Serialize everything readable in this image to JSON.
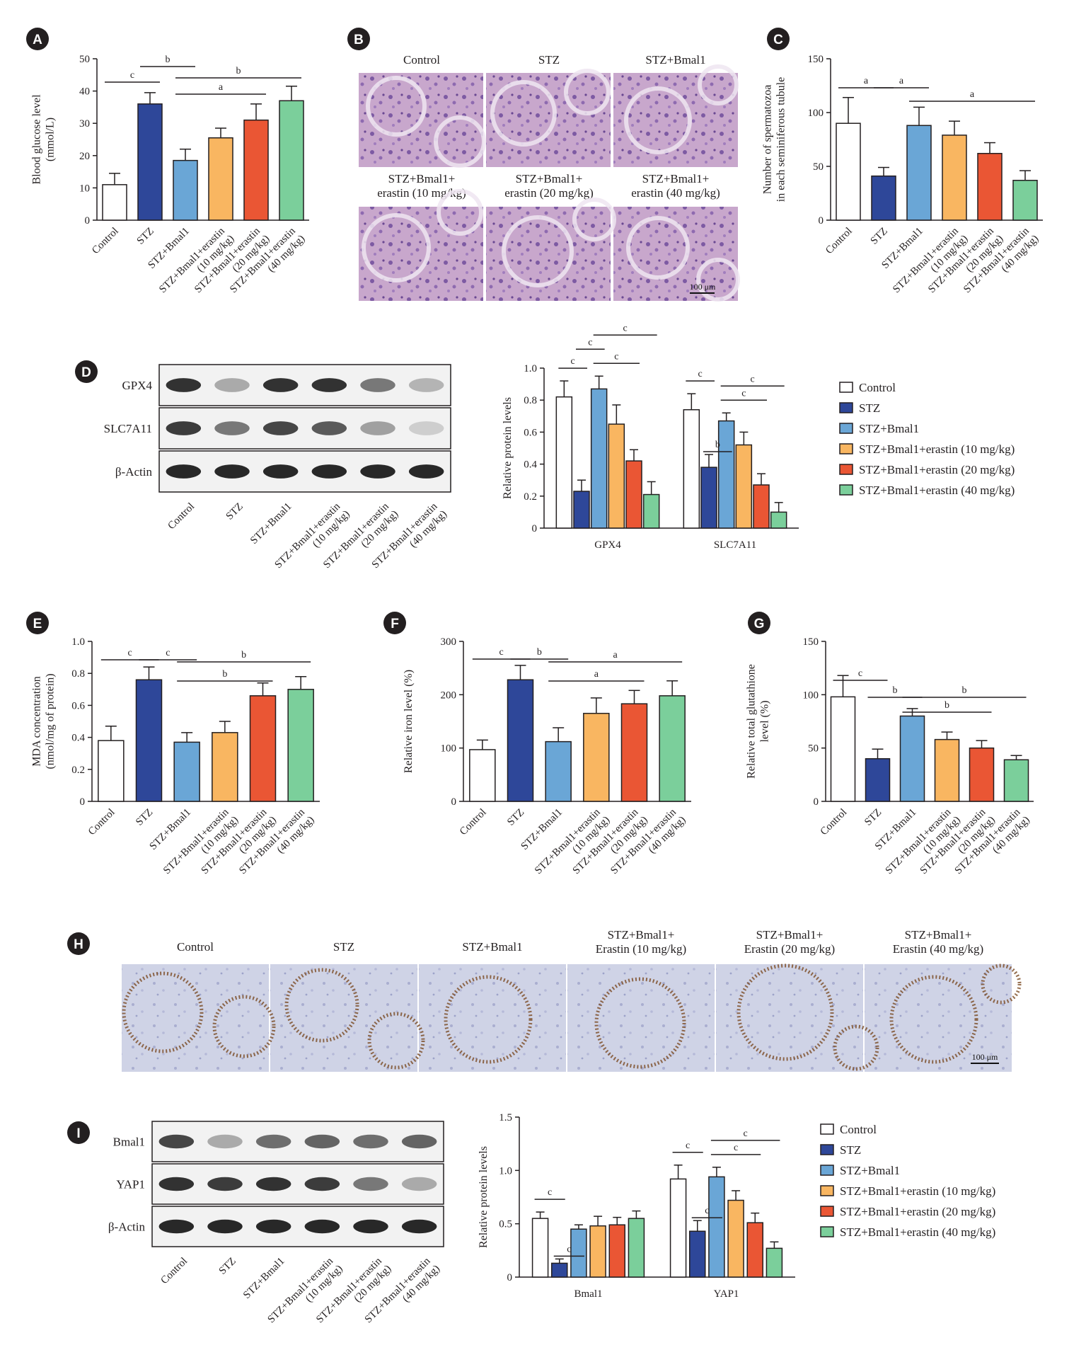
{
  "colors": {
    "Control": "#ffffff",
    "STZ": "#2e4799",
    "STZ+Bmal1": "#6aa6d6",
    "STZ+Bmal1+erastin (10 mg/kg)": "#f9b661",
    "STZ+Bmal1+erastin (20 mg/kg)": "#ea5634",
    "STZ+Bmal1+erastin (40 mg/kg)": "#7bcf9b"
  },
  "panel_labels": [
    "A",
    "B",
    "C",
    "D",
    "E",
    "F",
    "G",
    "H",
    "I"
  ],
  "panel_b": {
    "top_captions": [
      "Control",
      "STZ",
      "STZ+Bmal1"
    ],
    "bottom_captions": [
      "STZ+Bmal1+\nerastin (10 mg/kg)",
      "STZ+Bmal1+\nerastin (20 mg/kg)",
      "STZ+Bmal1+\nerastin (40 mg/kg)"
    ],
    "scale_bar": "100 μm"
  },
  "panel_h": {
    "captions": [
      "Control",
      "STZ",
      "STZ+Bmal1",
      "STZ+Bmal1+\nErastin (10 mg/kg)",
      "STZ+Bmal1+\nErastin (20 mg/kg)",
      "STZ+Bmal1+\nErastin (40 mg/kg)"
    ],
    "scale_bar": "100 μm"
  },
  "panel_d_blot": {
    "rows": [
      "GPX4",
      "SLC7A11",
      "β-Actin"
    ],
    "lanes": [
      "Control",
      "STZ",
      "STZ+Bmal1",
      "STZ+Bmal1+erastin\n(10 mg/kg)",
      "STZ+Bmal1+erastin\n(20 mg/kg)",
      "STZ+Bmal1+erastin\n(40 mg/kg)"
    ],
    "intensity": [
      [
        0.9,
        0.3,
        0.9,
        0.9,
        0.55,
        0.25
      ],
      [
        0.85,
        0.55,
        0.8,
        0.7,
        0.35,
        0.12
      ],
      [
        0.95,
        0.95,
        0.95,
        0.95,
        0.95,
        0.95
      ]
    ]
  },
  "panel_i_blot": {
    "rows": [
      "Bmal1",
      "YAP1",
      "β-Actin"
    ],
    "lanes": [
      "Control",
      "STZ",
      "STZ+Bmal1",
      "STZ+Bmal1+erastin\n(10 mg/kg)",
      "STZ+Bmal1+erastin\n(20 mg/kg)",
      "STZ+Bmal1+erastin\n(40 mg/kg)"
    ],
    "intensity": [
      [
        0.8,
        0.3,
        0.6,
        0.65,
        0.6,
        0.65
      ],
      [
        0.9,
        0.85,
        0.9,
        0.85,
        0.55,
        0.3
      ],
      [
        0.95,
        0.95,
        0.95,
        0.95,
        0.95,
        0.95
      ]
    ]
  },
  "chart_data": [
    {
      "id": "A",
      "type": "bar",
      "categories": [
        "Control",
        "STZ",
        "STZ+Bmal1",
        "STZ+Bmal1+erastin\n(10 mg/kg)",
        "STZ+Bmal1+erastin\n(20 mg/kg)",
        "STZ+Bmal1+erastin\n(40 mg/kg)"
      ],
      "values": [
        11,
        36,
        18.5,
        25.5,
        31,
        37
      ],
      "errors": [
        3.5,
        3.5,
        3.5,
        3,
        5,
        4.5
      ],
      "ylabel": "Blood glucose level\n(mmol/L)",
      "ylim": [
        0,
        50
      ],
      "yticks": [
        0,
        10,
        20,
        30,
        40,
        50
      ],
      "significance": [
        {
          "from": 0,
          "to": 1,
          "label": "c"
        },
        {
          "from": 1,
          "to": 2,
          "label": "b"
        },
        {
          "from": 2,
          "to": 4,
          "label": "a"
        },
        {
          "from": 2,
          "to": 5,
          "label": "b"
        }
      ]
    },
    {
      "id": "C",
      "type": "bar",
      "categories": [
        "Control",
        "STZ",
        "STZ+Bmal1",
        "STZ+Bmal1+erastin\n(10 mg/kg)",
        "STZ+Bmal1+erastin\n(20 mg/kg)",
        "STZ+Bmal1+erastin\n(40 mg/kg)"
      ],
      "values": [
        90,
        41,
        88,
        79,
        62,
        37
      ],
      "errors": [
        24,
        8,
        17,
        13,
        10,
        9
      ],
      "ylabel": "Number of spermatozoa\nin each seminiferous tubule",
      "ylim": [
        0,
        150
      ],
      "yticks": [
        0,
        50,
        100,
        150
      ],
      "significance": [
        {
          "from": 0,
          "to": 1,
          "label": "a"
        },
        {
          "from": 1,
          "to": 2,
          "label": "a"
        },
        {
          "from": 2,
          "to": 5,
          "label": "a"
        }
      ]
    },
    {
      "id": "D",
      "type": "bar",
      "groups": [
        "GPX4",
        "SLC7A11"
      ],
      "series": [
        {
          "name": "Control",
          "values": [
            0.82,
            0.74
          ],
          "errors": [
            0.1,
            0.1
          ]
        },
        {
          "name": "STZ",
          "values": [
            0.23,
            0.38
          ],
          "errors": [
            0.07,
            0.08
          ]
        },
        {
          "name": "STZ+Bmal1",
          "values": [
            0.87,
            0.67
          ],
          "errors": [
            0.08,
            0.05
          ]
        },
        {
          "name": "STZ+Bmal1+erastin (10 mg/kg)",
          "values": [
            0.65,
            0.52
          ],
          "errors": [
            0.12,
            0.08
          ]
        },
        {
          "name": "STZ+Bmal1+erastin (20 mg/kg)",
          "values": [
            0.42,
            0.27
          ],
          "errors": [
            0.07,
            0.07
          ]
        },
        {
          "name": "STZ+Bmal1+erastin (40 mg/kg)",
          "values": [
            0.21,
            0.1
          ],
          "errors": [
            0.08,
            0.06
          ]
        }
      ],
      "ylabel": "Relative protein levels",
      "ylim": [
        0,
        1.0
      ],
      "yticks": [
        "0",
        "0.2",
        "0.4",
        "0.6",
        "0.8",
        "1.0"
      ],
      "legend": "right",
      "significance": [
        {
          "group": 0,
          "from": 0,
          "to": 1,
          "label": "c",
          "level": 0
        },
        {
          "group": 0,
          "from": 1,
          "to": 2,
          "label": "c",
          "level": 1
        },
        {
          "group": 0,
          "from": 2,
          "to": 4,
          "label": "c",
          "level": 0
        },
        {
          "group": 0,
          "from": 2,
          "to": 5,
          "label": "c",
          "level": 2
        },
        {
          "group": 1,
          "from": 0,
          "to": 1,
          "label": "c",
          "level": 0
        },
        {
          "group": 1,
          "from": 1,
          "to": 2,
          "label": "b",
          "level": -1
        },
        {
          "group": 1,
          "from": 2,
          "to": 4,
          "label": "c",
          "level": 0
        },
        {
          "group": 1,
          "from": 2,
          "to": 5,
          "label": "c",
          "level": 1
        }
      ]
    },
    {
      "id": "E",
      "type": "bar",
      "categories": [
        "Control",
        "STZ",
        "STZ+Bmal1",
        "STZ+Bmal1+erastin\n(10 mg/kg)",
        "STZ+Bmal1+erastin\n(20 mg/kg)",
        "STZ+Bmal1+erastin\n(40 mg/kg)"
      ],
      "values": [
        0.38,
        0.76,
        0.37,
        0.43,
        0.66,
        0.7
      ],
      "errors": [
        0.09,
        0.08,
        0.06,
        0.07,
        0.08,
        0.08
      ],
      "ylabel": "MDA concentration\n(nmol/mg of protein)",
      "ylim": [
        0,
        1.0
      ],
      "yticks": [
        "0",
        "0.2",
        "0.4",
        "0.6",
        "0.8",
        "1.0"
      ],
      "significance": [
        {
          "from": 0,
          "to": 1,
          "label": "c"
        },
        {
          "from": 1,
          "to": 2,
          "label": "c"
        },
        {
          "from": 2,
          "to": 4,
          "label": "b"
        },
        {
          "from": 2,
          "to": 5,
          "label": "b"
        }
      ]
    },
    {
      "id": "F",
      "type": "bar",
      "categories": [
        "Control",
        "STZ",
        "STZ+Bmal1",
        "STZ+Bmal1+erastin\n(10 mg/kg)",
        "STZ+Bmal1+erastin\n(20 mg/kg)",
        "STZ+Bmal1+erastin\n(40 mg/kg)"
      ],
      "values": [
        97,
        228,
        112,
        165,
        183,
        198
      ],
      "errors": [
        18,
        27,
        26,
        29,
        25,
        28
      ],
      "ylabel": "Relative iron level (%)",
      "ylim": [
        0,
        300
      ],
      "yticks": [
        0,
        100,
        200,
        300
      ],
      "significance": [
        {
          "from": 0,
          "to": 1,
          "label": "c"
        },
        {
          "from": 1,
          "to": 2,
          "label": "b"
        },
        {
          "from": 2,
          "to": 4,
          "label": "a"
        },
        {
          "from": 2,
          "to": 5,
          "label": "a"
        }
      ]
    },
    {
      "id": "G",
      "type": "bar",
      "categories": [
        "Control",
        "STZ",
        "STZ+Bmal1",
        "STZ+Bmal1+erastin\n(10 mg/kg)",
        "STZ+Bmal1+erastin\n(20 mg/kg)",
        "STZ+Bmal1+erastin\n(40 mg/kg)"
      ],
      "values": [
        98,
        40,
        80,
        58,
        50,
        39
      ],
      "errors": [
        20,
        9,
        7,
        7,
        7,
        4
      ],
      "ylabel": "Relative total glutathione\nlevel (%)",
      "ylim": [
        0,
        150
      ],
      "yticks": [
        0,
        50,
        100,
        150
      ],
      "significance": [
        {
          "from": 0,
          "to": 1,
          "label": "c"
        },
        {
          "from": 1,
          "to": 2,
          "label": "b"
        },
        {
          "from": 2,
          "to": 4,
          "label": "b"
        },
        {
          "from": 2,
          "to": 5,
          "label": "b"
        }
      ]
    },
    {
      "id": "I",
      "type": "bar",
      "groups": [
        "Bmal1",
        "YAP1"
      ],
      "series": [
        {
          "name": "Control",
          "values": [
            0.55,
            0.92
          ],
          "errors": [
            0.06,
            0.13
          ]
        },
        {
          "name": "STZ",
          "values": [
            0.13,
            0.43
          ],
          "errors": [
            0.04,
            0.1
          ]
        },
        {
          "name": "STZ+Bmal1",
          "values": [
            0.45,
            0.94
          ],
          "errors": [
            0.04,
            0.09
          ]
        },
        {
          "name": "STZ+Bmal1+erastin (10 mg/kg)",
          "values": [
            0.48,
            0.72
          ],
          "errors": [
            0.09,
            0.09
          ]
        },
        {
          "name": "STZ+Bmal1+erastin (20 mg/kg)",
          "values": [
            0.49,
            0.51
          ],
          "errors": [
            0.07,
            0.09
          ]
        },
        {
          "name": "STZ+Bmal1+erastin (40 mg/kg)",
          "values": [
            0.55,
            0.27
          ],
          "errors": [
            0.07,
            0.06
          ]
        }
      ],
      "ylabel": "Relative protein levels",
      "ylim": [
        0,
        1.5
      ],
      "yticks": [
        "0",
        "0.5",
        "1.0",
        "1.5"
      ],
      "legend": "right",
      "significance": [
        {
          "group": 0,
          "from": 0,
          "to": 1,
          "label": "c",
          "level": 0
        },
        {
          "group": 0,
          "from": 1,
          "to": 2,
          "label": "c",
          "level": -1
        },
        {
          "group": 1,
          "from": 0,
          "to": 1,
          "label": "c",
          "level": 0
        },
        {
          "group": 1,
          "from": 1,
          "to": 2,
          "label": "c",
          "level": -1
        },
        {
          "group": 1,
          "from": 2,
          "to": 4,
          "label": "c",
          "level": 0
        },
        {
          "group": 1,
          "from": 2,
          "to": 5,
          "label": "c",
          "level": 1
        }
      ]
    }
  ]
}
